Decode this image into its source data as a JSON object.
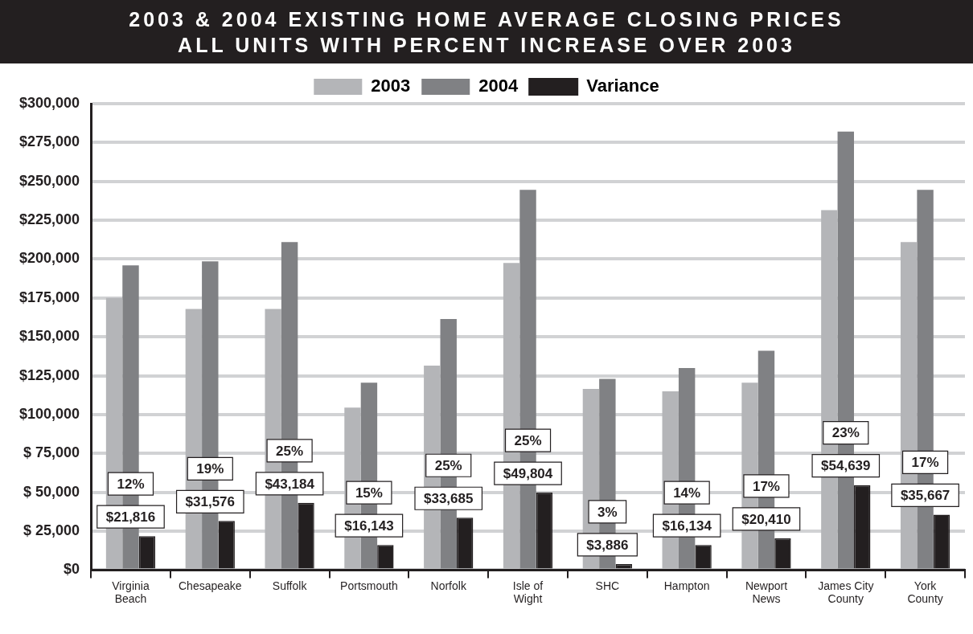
{
  "chart_data": {
    "type": "bar",
    "title": "2003 & 2004 EXISTING HOME AVERAGE CLOSING PRICES",
    "subtitle": "ALL UNITS WITH PERCENT INCREASE OVER 2003",
    "categories": [
      "Virginia Beach",
      "Chesapeake",
      "Suffolk",
      "Portsmouth",
      "Norfolk",
      "Isle of Wight",
      "SHC",
      "Hampton",
      "Newport News",
      "James City County",
      "York County"
    ],
    "series": [
      {
        "name": "2003",
        "color": "#b4b5b8",
        "values": [
          175000,
          168000,
          168000,
          104500,
          131500,
          197500,
          116500,
          115000,
          120500,
          231500,
          211000
        ]
      },
      {
        "name": "2004",
        "color": "#808184",
        "values": [
          196000,
          198500,
          211000,
          120500,
          161500,
          244500,
          123000,
          130000,
          141000,
          282000,
          244500
        ]
      },
      {
        "name": "Variance",
        "color": "#231f20",
        "values": [
          21816,
          31576,
          43184,
          16143,
          33685,
          49804,
          3886,
          16134,
          20410,
          54639,
          35667
        ],
        "value_labels": [
          "$21,816",
          "$31,576",
          "$43,184",
          "$16,143",
          "$33,685",
          "$49,804",
          "$3,886",
          "$16,134",
          "$20,410",
          "$54,639",
          "$35,667"
        ]
      }
    ],
    "ylim": [
      0,
      300000
    ],
    "yticks": [
      {
        "value": 0,
        "label": "$0"
      },
      {
        "value": 25000,
        "label": "$ 25,000"
      },
      {
        "value": 50000,
        "label": "$ 50,000"
      },
      {
        "value": 75000,
        "label": "$ 75,000"
      },
      {
        "value": 100000,
        "label": "$100,000"
      },
      {
        "value": 125000,
        "label": "$125,000"
      },
      {
        "value": 150000,
        "label": "$150,000"
      },
      {
        "value": 175000,
        "label": "$175,000"
      },
      {
        "value": 200000,
        "label": "$200,000"
      },
      {
        "value": 225000,
        "label": "$225,000"
      },
      {
        "value": 250000,
        "label": "$250,000"
      },
      {
        "value": 275000,
        "label": "$275,000"
      },
      {
        "value": 300000,
        "label": "$300,000"
      }
    ],
    "annotations": [
      "12%",
      "19%",
      "25%",
      "15%",
      "25%",
      "25%",
      "3%",
      "14%",
      "17%",
      "23%",
      "17%"
    ],
    "grid": "y",
    "legend": "top"
  }
}
